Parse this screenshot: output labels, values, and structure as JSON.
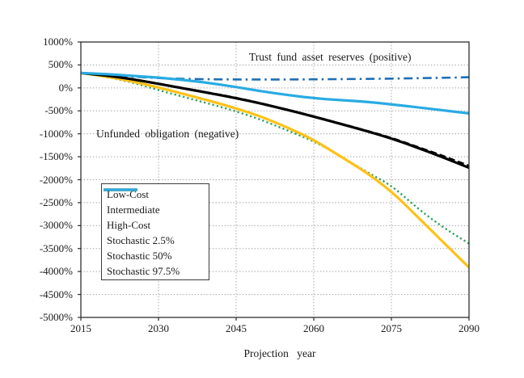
{
  "chart_data": {
    "type": "line",
    "title": "",
    "xlabel": "Projection year",
    "ylabel": "",
    "xlim": [
      2015,
      2090
    ],
    "ylim": [
      -5000,
      1000
    ],
    "grid": "dotted",
    "grid_color": "#a8a8a8",
    "frame_color": "#2f2f2f",
    "background": "#ffffff",
    "x_ticks": [
      {
        "label": "2015",
        "value": 2015
      },
      {
        "label": "2030",
        "value": 2030
      },
      {
        "label": "2045",
        "value": 2045
      },
      {
        "label": "2060",
        "value": 2060
      },
      {
        "label": "2075",
        "value": 2075
      },
      {
        "label": "2090",
        "value": 2090
      }
    ],
    "y_ticks": [
      {
        "label": "1000%",
        "value": 1000
      },
      {
        "label": "500%",
        "value": 500
      },
      {
        "label": "0%",
        "value": 0
      },
      {
        "label": "-500%",
        "value": -500
      },
      {
        "label": "-1000%",
        "value": -1000
      },
      {
        "label": "-1500%",
        "value": -1500
      },
      {
        "label": "-2000%",
        "value": -2000
      },
      {
        "label": "-2500%",
        "value": -2500
      },
      {
        "label": "-3000%",
        "value": -3000
      },
      {
        "label": "-3500%",
        "value": -3500
      },
      {
        "label": "-4000%",
        "value": -4000
      },
      {
        "label": "-4500%",
        "value": -4500
      },
      {
        "label": "-5000%",
        "value": -5000
      }
    ],
    "annotations": [
      {
        "text": "Trust fund asset reserves (positive)"
      },
      {
        "text": "Unfunded obligation (negative)"
      }
    ],
    "legend_position": "inside-lower-left",
    "x": [
      2015,
      2020,
      2025,
      2030,
      2035,
      2040,
      2045,
      2050,
      2055,
      2060,
      2065,
      2070,
      2075,
      2080,
      2085,
      2090
    ],
    "series": [
      {
        "name": "Low-Cost",
        "color": "#1f6fb5",
        "style": "dashdot",
        "width": 2.6,
        "values": [
          325,
          285,
          248,
          212,
          196,
          188,
          184,
          183,
          184,
          187,
          191,
          196,
          203,
          211,
          221,
          232
        ]
      },
      {
        "name": "Intermediate",
        "color": "#000000",
        "style": "dashed",
        "width": 2.8,
        "values": [
          325,
          271,
          191,
          92,
          -12,
          -112,
          -218,
          -343,
          -478,
          -622,
          -775,
          -928,
          -1088,
          -1285,
          -1482,
          -1700
        ]
      },
      {
        "name": "High-Cost",
        "color": "#2da05f",
        "style": "dotted",
        "width": 2.4,
        "values": [
          325,
          238,
          120,
          -50,
          -200,
          -352,
          -510,
          -700,
          -930,
          -1160,
          -1470,
          -1820,
          -2120,
          -2620,
          -3040,
          -3390
        ]
      },
      {
        "name": "Stochastic 2.5%",
        "color": "#ffc117",
        "style": "solid",
        "width": 3.2,
        "values": [
          325,
          250,
          140,
          10,
          -135,
          -285,
          -445,
          -630,
          -865,
          -1130,
          -1480,
          -1830,
          -2250,
          -2800,
          -3360,
          -3910
        ]
      },
      {
        "name": "Stochastic 50%",
        "color": "#000000",
        "style": "solid",
        "width": 3.2,
        "values": [
          325,
          270,
          190,
          90,
          -15,
          -115,
          -222,
          -345,
          -480,
          -625,
          -778,
          -932,
          -1100,
          -1300,
          -1515,
          -1740
        ]
      },
      {
        "name": "Stochastic 97.5%",
        "color": "#29abe2",
        "style": "solid",
        "width": 3.2,
        "values": [
          325,
          300,
          263,
          225,
          172,
          105,
          20,
          -75,
          -155,
          -225,
          -265,
          -300,
          -358,
          -423,
          -488,
          -555
        ]
      }
    ],
    "draw_order": [
      "Low-Cost",
      "High-Cost",
      "Stochastic 2.5%",
      "Stochastic 50%",
      "Intermediate",
      "Stochastic 97.5%"
    ]
  }
}
